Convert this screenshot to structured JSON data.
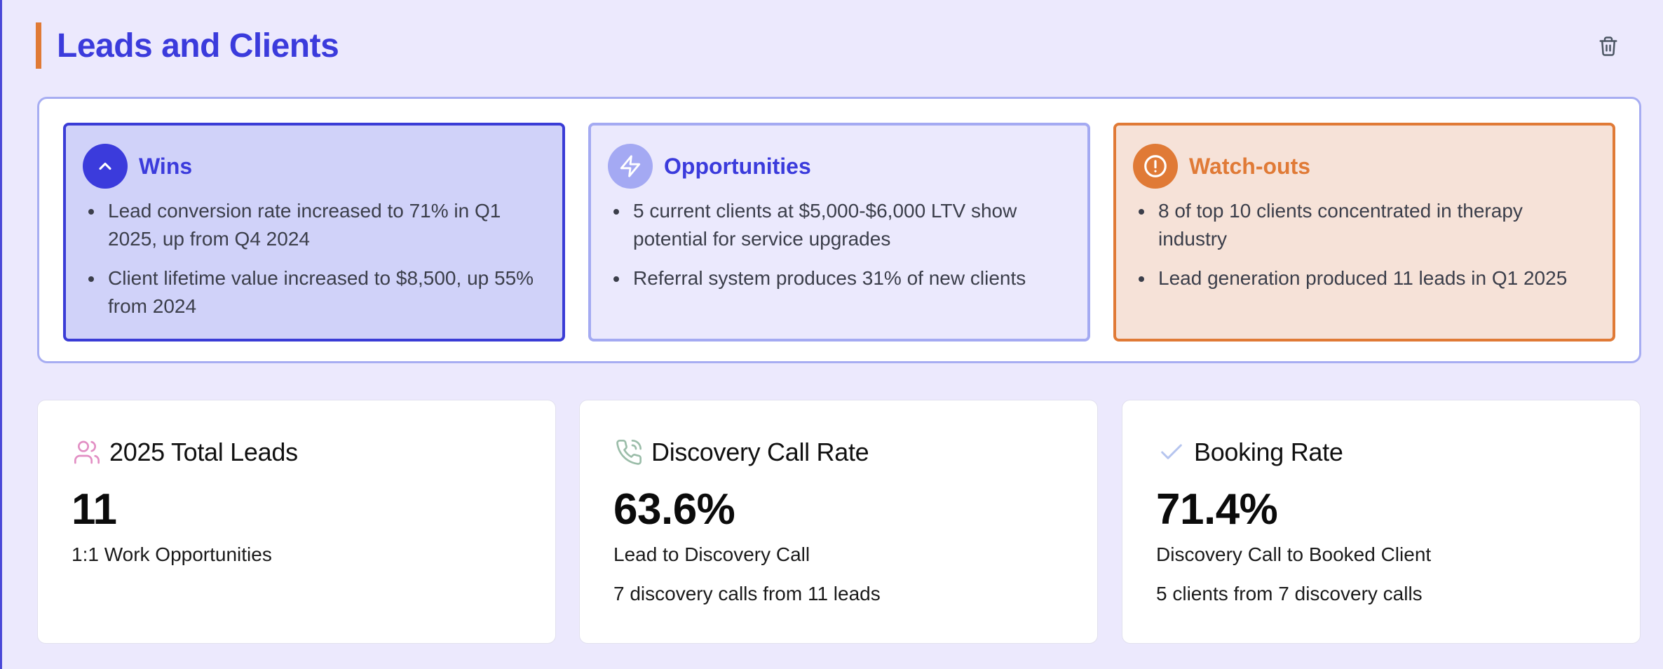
{
  "header": {
    "title": "Leads and Clients",
    "delete_icon": "trash-icon"
  },
  "insights": {
    "wins": {
      "title": "Wins",
      "icon": "chevron-up-icon",
      "items": [
        "Lead conversion rate increased to 71% in Q1 2025, up from Q4 2024",
        "Client lifetime value increased to $8,500, up 55% from 2024"
      ]
    },
    "opportunities": {
      "title": "Opportunities",
      "icon": "lightning-icon",
      "items": [
        "5 current clients at $5,000-$6,000 LTV show potential for service upgrades",
        "Referral system produces 31% of new clients"
      ]
    },
    "watchouts": {
      "title": "Watch-outs",
      "icon": "alert-circle-icon",
      "items": [
        "8 of top 10 clients concentrated in therapy industry",
        "Lead generation produced 11 leads in Q1 2025"
      ]
    }
  },
  "metrics": [
    {
      "title": "2025 Total Leads",
      "icon": "users-icon",
      "value": "11",
      "subtitle": "1:1 Work Opportunities",
      "note": ""
    },
    {
      "title": "Discovery Call Rate",
      "icon": "phone-icon",
      "value": "63.6%",
      "subtitle": "Lead to Discovery Call",
      "note": "7 discovery calls from 11 leads"
    },
    {
      "title": "Booking Rate",
      "icon": "check-icon",
      "value": "71.4%",
      "subtitle": "Discovery Call to Booked Client",
      "note": "5 clients from 7 discovery calls"
    }
  ],
  "colors": {
    "accent": "#3b3bdc",
    "warning": "#e07a36",
    "background": "#ece9fd"
  }
}
